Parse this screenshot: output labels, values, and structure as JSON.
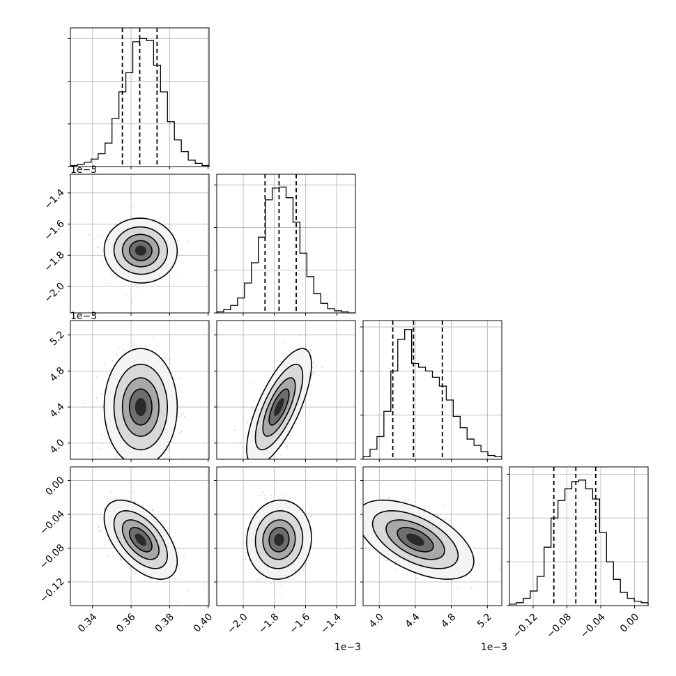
{
  "chart_data": {
    "type": "corner",
    "parameters": [
      {
        "index": 0,
        "range": [
          0.3285,
          0.4005
        ],
        "ticks": [
          0.34,
          0.36,
          0.38,
          0.4
        ],
        "tick_labels": [
          "0.34",
          "0.36",
          "0.38",
          "0.40"
        ],
        "offset_label": "",
        "quantiles": [
          0.3555,
          0.3645,
          0.3735
        ]
      },
      {
        "index": 1,
        "range": [
          -2.17,
          -1.28
        ],
        "ticks": [
          -2.0,
          -1.8,
          -1.6,
          -1.4
        ],
        "tick_labels": [
          "−2.0",
          "−1.8",
          "−1.6",
          "−1.4"
        ],
        "offset_label": "1e−3",
        "quantiles": [
          -1.86,
          -1.77,
          -1.66
        ]
      },
      {
        "index": 2,
        "range": [
          3.82,
          5.36
        ],
        "ticks": [
          4.0,
          4.4,
          4.8,
          5.2
        ],
        "tick_labels": [
          "4.0",
          "4.4",
          "4.8",
          "5.2"
        ],
        "offset_label": "1e−3",
        "quantiles": [
          4.15,
          4.38,
          4.7
        ]
      },
      {
        "index": 3,
        "range": [
          -0.148,
          0.016
        ],
        "ticks": [
          -0.12,
          -0.08,
          -0.04,
          0.0
        ],
        "tick_labels": [
          "−0.12",
          "−0.08",
          "−0.04",
          "0.00"
        ],
        "offset_label": "",
        "quantiles": [
          -0.0955,
          -0.0695,
          -0.046
        ]
      }
    ],
    "histograms": [
      {
        "param": 0,
        "bin_edges": [
          0.3285,
          0.3321,
          0.3357,
          0.3393,
          0.3429,
          0.3465,
          0.3501,
          0.3537,
          0.3573,
          0.3609,
          0.3645,
          0.3681,
          0.3717,
          0.3753,
          0.3789,
          0.3825,
          0.3861,
          0.3897,
          0.3933,
          0.3969,
          0.4005
        ],
        "counts": [
          1,
          2,
          4,
          7,
          12,
          22,
          45,
          70,
          88,
          117,
          120,
          118,
          95,
          70,
          42,
          25,
          14,
          6,
          3,
          1
        ],
        "ylim": [
          0,
          130
        ],
        "yticks": [
          0,
          40,
          80,
          120
        ]
      },
      {
        "param": 1,
        "bin_edges": [
          -2.17,
          -2.1255,
          -2.081,
          -2.0365,
          -1.992,
          -1.9475,
          -1.903,
          -1.8585,
          -1.814,
          -1.7695,
          -1.725,
          -1.6805,
          -1.636,
          -1.5915,
          -1.547,
          -1.5025,
          -1.458,
          -1.4135,
          -1.369,
          -1.3245,
          -1.28
        ],
        "counts": [
          1,
          3,
          7,
          14,
          28,
          47,
          71,
          106,
          117,
          118,
          108,
          85,
          56,
          34,
          18,
          9,
          4,
          2,
          1,
          0
        ],
        "ylim": [
          0,
          130
        ],
        "yticks": [
          0,
          40,
          80,
          120
        ]
      },
      {
        "param": 2,
        "bin_edges": [
          3.82,
          3.897,
          3.974,
          4.051,
          4.128,
          4.205,
          4.282,
          4.359,
          4.436,
          4.513,
          4.59,
          4.667,
          4.744,
          4.821,
          4.898,
          4.975,
          5.052,
          5.129,
          5.206,
          5.283,
          5.36
        ],
        "counts": [
          2,
          8,
          18,
          38,
          70,
          95,
          103,
          76,
          73,
          70,
          65,
          58,
          47,
          34,
          25,
          16,
          11,
          6,
          3,
          2
        ],
        "ylim": [
          0,
          110
        ],
        "yticks": [
          0,
          35,
          70,
          105
        ]
      },
      {
        "param": 3,
        "bin_edges": [
          -0.148,
          -0.1398,
          -0.1316,
          -0.1234,
          -0.1152,
          -0.107,
          -0.0988,
          -0.0906,
          -0.0824,
          -0.0742,
          -0.066,
          -0.0578,
          -0.0496,
          -0.0414,
          -0.0332,
          -0.025,
          -0.0168,
          -0.0086,
          -0.0004,
          0.0078,
          0.016
        ],
        "counts": [
          1,
          2,
          5,
          10,
          20,
          40,
          60,
          72,
          80,
          85,
          86,
          80,
          73,
          50,
          30,
          18,
          9,
          5,
          3,
          2
        ],
        "ylim": [
          0,
          95
        ],
        "yticks": [
          0,
          30,
          60,
          90
        ]
      }
    ],
    "pairs": [
      {
        "x": 0,
        "y": 1,
        "center": [
          0.365,
          -1.77
        ],
        "sigma": [
          0.0073,
          0.08
        ],
        "rho": -0.02,
        "levels_sigma": [
          0.8,
          1.3,
          1.9,
          2.6
        ]
      },
      {
        "x": 0,
        "y": 2,
        "center": [
          0.365,
          4.4
        ],
        "sigma": [
          0.0073,
          0.25
        ],
        "rho": 0.0,
        "levels_sigma": [
          0.8,
          1.3,
          1.9,
          2.6
        ]
      },
      {
        "x": 1,
        "y": 2,
        "center": [
          -1.77,
          4.4
        ],
        "sigma": [
          0.08,
          0.25
        ],
        "rho": 0.72,
        "levels_sigma": [
          0.8,
          1.3,
          1.9,
          2.6
        ]
      },
      {
        "x": 0,
        "y": 3,
        "center": [
          0.365,
          -0.07
        ],
        "sigma": [
          0.0073,
          0.018
        ],
        "rho": -0.55,
        "levels_sigma": [
          0.8,
          1.3,
          1.9,
          2.6
        ]
      },
      {
        "x": 1,
        "y": 3,
        "center": [
          -1.77,
          -0.07
        ],
        "sigma": [
          0.08,
          0.018
        ],
        "rho": 0.05,
        "levels_sigma": [
          0.8,
          1.3,
          1.9,
          2.6
        ]
      },
      {
        "x": 2,
        "y": 3,
        "center": [
          4.4,
          -0.07
        ],
        "sigma": [
          0.25,
          0.018
        ],
        "rho": -0.55,
        "levels_sigma": [
          0.8,
          1.3,
          1.9,
          2.6
        ]
      }
    ],
    "grid": true,
    "colors": {
      "line": "#000000",
      "scatter": "#9a9a9a",
      "grid": "#b0b0b0"
    }
  }
}
